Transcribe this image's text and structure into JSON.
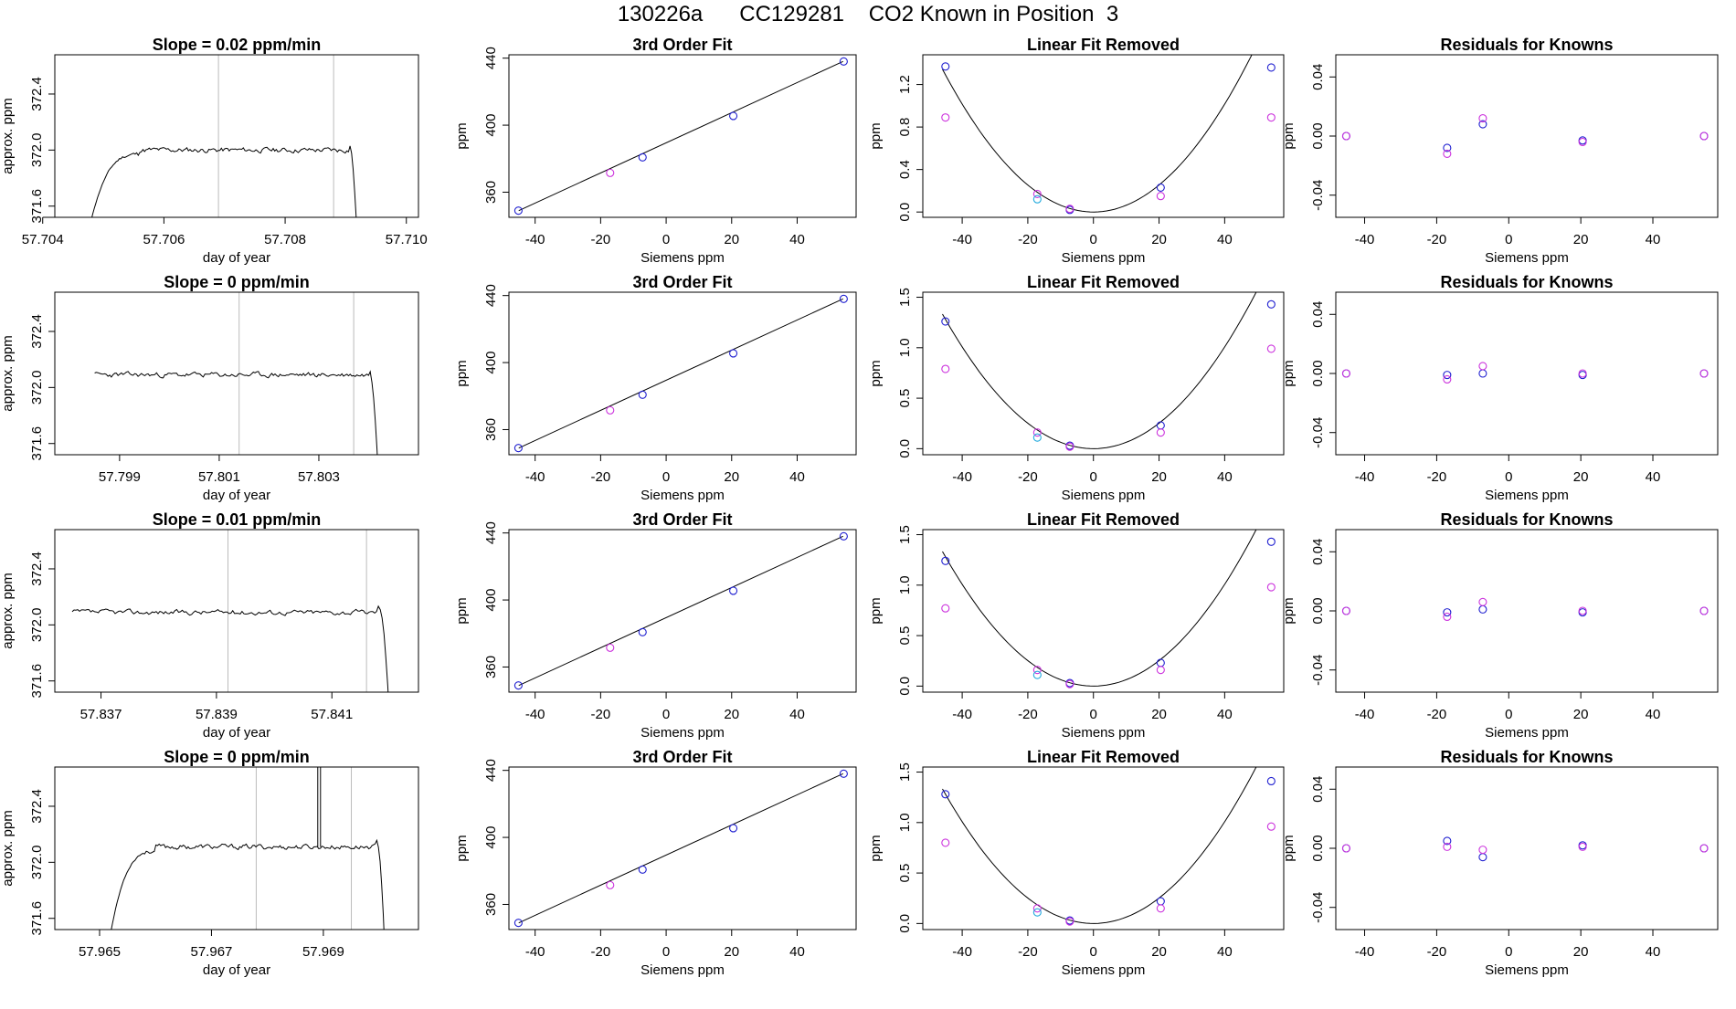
{
  "figure_title": "130226a      CC129281    CO2 Known in Position  3",
  "colors": {
    "axis": "#000000",
    "line": "#000000",
    "vline": "#bbbbbb",
    "blue": "#1f1fd0",
    "magenta": "#cc33dd",
    "cyan": "#22aadd",
    "red": "#ff6666"
  },
  "chart_data": [
    {
      "panel": "r1-trace",
      "type": "line",
      "title": "Slope =  0.02  ppm/min",
      "xlabel": "day of year",
      "ylabel": "approx. ppm",
      "xlim": [
        57.7042,
        57.7102
      ],
      "ylim": [
        371.52,
        372.68
      ],
      "xticks": [
        "57.704",
        "57.706",
        "57.708",
        "57.710"
      ],
      "yticks": [
        "371.6",
        "372.0",
        "372.4"
      ],
      "vlines": [
        57.7069,
        57.7088
      ],
      "trace": {
        "start": 57.7048,
        "end": 57.7092,
        "level": 372.0,
        "rise_from": 371.5,
        "rise_end": 57.7056,
        "fall_start": 57.70905,
        "seed": 11
      }
    },
    {
      "panel": "r1-fit",
      "type": "scatter",
      "title": "3rd Order Fit",
      "xlabel": "Siemens ppm",
      "ylabel": "ppm",
      "xlim": [
        -48,
        58
      ],
      "ylim": [
        345,
        442
      ],
      "xticks": [
        "-40",
        "-20",
        "0",
        "20",
        "40"
      ],
      "yticks": [
        "360",
        "400",
        "440"
      ],
      "line": {
        "x": [
          -45,
          54
        ],
        "y": [
          349.0,
          438.0
        ]
      },
      "series": [
        {
          "name": "blue",
          "x": [
            -45.1,
            -7.2,
            20.5,
            54.2
          ],
          "y": [
            349.0,
            380.8,
            405.5,
            438.0
          ]
        },
        {
          "name": "magenta",
          "x": [
            -17.1
          ],
          "y": [
            371.5
          ]
        }
      ]
    },
    {
      "panel": "r1-lin",
      "type": "scatter",
      "title": "Linear Fit Removed",
      "xlabel": "Siemens ppm",
      "ylabel": "ppm",
      "xlim": [
        -52,
        58
      ],
      "ylim": [
        -0.05,
        1.48
      ],
      "xticks": [
        "-40",
        "-20",
        "0",
        "20",
        "40"
      ],
      "yticks": [
        "0.0",
        "0.4",
        "0.8",
        "1.2"
      ],
      "curve": {
        "x0": 0.0,
        "a": 0.000635,
        "from": -46,
        "to": 54
      },
      "series": [
        {
          "name": "blue",
          "x": [
            -45.1,
            -7.2,
            20.5,
            54.2
          ],
          "y": [
            1.37,
            0.02,
            0.23,
            1.36
          ]
        },
        {
          "name": "magenta",
          "x": [
            -45.1,
            -17.1,
            -7.2,
            20.5,
            54.2
          ],
          "y": [
            0.89,
            0.17,
            0.03,
            0.15,
            0.89
          ]
        },
        {
          "name": "cyan",
          "x": [
            -17.1
          ],
          "y": [
            0.12
          ]
        }
      ]
    },
    {
      "panel": "r1-res",
      "type": "scatter",
      "title": "Residuals for Knowns",
      "xlabel": "Siemens ppm",
      "ylabel": "ppm",
      "xlim": [
        -48,
        58
      ],
      "ylim": [
        -0.055,
        0.055
      ],
      "xticks": [
        "-40",
        "-20",
        "0",
        "20",
        "40"
      ],
      "yticks": [
        "-0.04",
        "0.00",
        "0.04"
      ],
      "series": [
        {
          "name": "blue",
          "x": [
            -45.1,
            -17.1,
            -7.2,
            20.5,
            54.2
          ],
          "y": [
            0.0,
            -0.008,
            0.008,
            -0.003,
            0.0
          ]
        },
        {
          "name": "magenta",
          "x": [
            -45.1,
            -17.1,
            -7.2,
            20.5,
            54.2
          ],
          "y": [
            0.0,
            -0.012,
            0.012,
            -0.004,
            0.0
          ]
        }
      ]
    },
    {
      "panel": "r2-trace",
      "type": "line",
      "title": "Slope =  0  ppm/min",
      "xlabel": "day of year",
      "ylabel": "approx. ppm",
      "xlim": [
        57.7977,
        57.805
      ],
      "ylim": [
        371.52,
        372.68
      ],
      "xticks": [
        "57.799",
        "57.801",
        "57.803"
      ],
      "yticks": [
        "371.6",
        "372.0",
        "372.4"
      ],
      "vlines": [
        57.8014,
        57.8037
      ],
      "trace": {
        "start": 57.7985,
        "end": 57.8042,
        "level": 372.09,
        "rise_from": null,
        "rise_end": null,
        "fall_start": 57.804,
        "seed": 23
      }
    },
    {
      "panel": "r2-fit",
      "type": "scatter",
      "title": "3rd Order Fit",
      "xlabel": "Siemens ppm",
      "ylabel": "ppm",
      "xlim": [
        -48,
        58
      ],
      "ylim": [
        345,
        442
      ],
      "xticks": [
        "-40",
        "-20",
        "0",
        "20",
        "40"
      ],
      "yticks": [
        "360",
        "400",
        "440"
      ],
      "line": {
        "x": [
          -45,
          54
        ],
        "y": [
          349.0,
          438.0
        ]
      },
      "series": [
        {
          "name": "blue",
          "x": [
            -45.1,
            -7.2,
            20.5,
            54.2
          ],
          "y": [
            349.0,
            380.8,
            405.5,
            438.0
          ]
        },
        {
          "name": "magenta",
          "x": [
            -17.1
          ],
          "y": [
            371.5
          ]
        }
      ]
    },
    {
      "panel": "r2-lin",
      "type": "scatter",
      "title": "Linear Fit Removed",
      "xlabel": "Siemens ppm",
      "ylabel": "ppm",
      "xlim": [
        -52,
        58
      ],
      "ylim": [
        -0.06,
        1.55
      ],
      "xticks": [
        "-40",
        "-20",
        "0",
        "20",
        "40"
      ],
      "yticks": [
        "0.0",
        "0.5",
        "1.0",
        "1.5"
      ],
      "curve": {
        "x0": 0.0,
        "a": 0.00063,
        "from": -46,
        "to": 54
      },
      "series": [
        {
          "name": "blue",
          "x": [
            -45.1,
            -7.2,
            20.5,
            54.2
          ],
          "y": [
            1.26,
            0.03,
            0.23,
            1.43
          ]
        },
        {
          "name": "magenta",
          "x": [
            -45.1,
            -17.1,
            -7.2,
            20.5,
            54.2
          ],
          "y": [
            0.79,
            0.16,
            0.02,
            0.16,
            0.99
          ]
        },
        {
          "name": "cyan",
          "x": [
            -17.1
          ],
          "y": [
            0.11
          ]
        }
      ]
    },
    {
      "panel": "r2-res",
      "type": "scatter",
      "title": "Residuals for Knowns",
      "xlabel": "Siemens ppm",
      "ylabel": "ppm",
      "xlim": [
        -48,
        58
      ],
      "ylim": [
        -0.055,
        0.055
      ],
      "xticks": [
        "-40",
        "-20",
        "0",
        "20",
        "40"
      ],
      "yticks": [
        "-0.04",
        "0.00",
        "0.04"
      ],
      "series": [
        {
          "name": "blue",
          "x": [
            -45.1,
            -17.1,
            -7.2,
            20.5,
            54.2
          ],
          "y": [
            0.0,
            -0.001,
            0.0,
            -0.001,
            0.0
          ]
        },
        {
          "name": "magenta",
          "x": [
            -45.1,
            -17.1,
            -7.2,
            20.5,
            54.2
          ],
          "y": [
            0.0,
            -0.004,
            0.005,
            0.0,
            0.0
          ]
        }
      ]
    },
    {
      "panel": "r3-trace",
      "type": "line",
      "title": "Slope =  0.01  ppm/min",
      "xlabel": "day of year",
      "ylabel": "approx. ppm",
      "xlim": [
        57.8362,
        57.8425
      ],
      "ylim": [
        371.52,
        372.68
      ],
      "xticks": [
        "57.837",
        "57.839",
        "57.841"
      ],
      "yticks": [
        "371.6",
        "372.0",
        "372.4"
      ],
      "vlines": [
        57.8392,
        57.8416
      ],
      "trace": {
        "start": 57.8365,
        "end": 57.842,
        "level": 372.09,
        "rise_from": null,
        "rise_end": null,
        "fall_start": 57.8418,
        "seed": 37
      }
    },
    {
      "panel": "r3-fit",
      "type": "scatter",
      "title": "3rd Order Fit",
      "xlabel": "Siemens ppm",
      "ylabel": "ppm",
      "xlim": [
        -48,
        58
      ],
      "ylim": [
        345,
        442
      ],
      "xticks": [
        "-40",
        "-20",
        "0",
        "20",
        "40"
      ],
      "yticks": [
        "360",
        "400",
        "440"
      ],
      "line": {
        "x": [
          -45,
          54
        ],
        "y": [
          349.0,
          438.0
        ]
      },
      "series": [
        {
          "name": "blue",
          "x": [
            -45.1,
            -7.2,
            20.5,
            54.2
          ],
          "y": [
            349.0,
            380.8,
            405.5,
            438.0
          ]
        },
        {
          "name": "magenta",
          "x": [
            -17.1
          ],
          "y": [
            371.5
          ]
        }
      ]
    },
    {
      "panel": "r3-lin",
      "type": "scatter",
      "title": "Linear Fit Removed",
      "xlabel": "Siemens ppm",
      "ylabel": "ppm",
      "xlim": [
        -52,
        58
      ],
      "ylim": [
        -0.06,
        1.55
      ],
      "xticks": [
        "-40",
        "-20",
        "0",
        "20",
        "40"
      ],
      "yticks": [
        "0.0",
        "0.5",
        "1.0",
        "1.5"
      ],
      "curve": {
        "x0": 0.0,
        "a": 0.00063,
        "from": -46,
        "to": 54
      },
      "series": [
        {
          "name": "blue",
          "x": [
            -45.1,
            -7.2,
            20.5,
            54.2
          ],
          "y": [
            1.24,
            0.03,
            0.23,
            1.43
          ]
        },
        {
          "name": "magenta",
          "x": [
            -45.1,
            -17.1,
            -7.2,
            20.5,
            54.2
          ],
          "y": [
            0.77,
            0.16,
            0.02,
            0.16,
            0.98
          ]
        },
        {
          "name": "cyan",
          "x": [
            -17.1
          ],
          "y": [
            0.11
          ]
        }
      ]
    },
    {
      "panel": "r3-res",
      "type": "scatter",
      "title": "Residuals for Knowns",
      "xlabel": "Siemens ppm",
      "ylabel": "ppm",
      "xlim": [
        -48,
        58
      ],
      "ylim": [
        -0.055,
        0.055
      ],
      "xticks": [
        "-40",
        "-20",
        "0",
        "20",
        "40"
      ],
      "yticks": [
        "-0.04",
        "0.00",
        "0.04"
      ],
      "series": [
        {
          "name": "blue",
          "x": [
            -45.1,
            -17.1,
            -7.2,
            20.5,
            54.2
          ],
          "y": [
            0.0,
            -0.001,
            0.001,
            -0.001,
            0.0
          ]
        },
        {
          "name": "magenta",
          "x": [
            -45.1,
            -17.1,
            -7.2,
            20.5,
            54.2
          ],
          "y": [
            0.0,
            -0.004,
            0.006,
            0.0,
            0.0
          ]
        }
      ]
    },
    {
      "panel": "r4-trace",
      "type": "line",
      "title": "Slope =  0  ppm/min",
      "xlabel": "day of year",
      "ylabel": "approx. ppm",
      "xlim": [
        57.9642,
        57.9707
      ],
      "ylim": [
        371.52,
        372.68
      ],
      "xticks": [
        "57.965",
        "57.967",
        "57.969"
      ],
      "yticks": [
        "371.6",
        "372.0",
        "372.4"
      ],
      "vlines": [
        57.9678,
        57.9695
      ],
      "spike": 57.9689,
      "trace": {
        "start": 57.9652,
        "end": 57.9701,
        "level": 372.11,
        "rise_from": 371.5,
        "rise_end": 57.966,
        "fall_start": 57.96995,
        "seed": 53
      }
    },
    {
      "panel": "r4-fit",
      "type": "scatter",
      "title": "3rd Order Fit",
      "xlabel": "Siemens ppm",
      "ylabel": "ppm",
      "xlim": [
        -48,
        58
      ],
      "ylim": [
        345,
        442
      ],
      "xticks": [
        "-40",
        "-20",
        "0",
        "20",
        "40"
      ],
      "yticks": [
        "360",
        "400",
        "440"
      ],
      "line": {
        "x": [
          -45,
          54
        ],
        "y": [
          349.0,
          438.0
        ]
      },
      "series": [
        {
          "name": "blue",
          "x": [
            -45.1,
            -7.2,
            20.5,
            54.2
          ],
          "y": [
            349.0,
            380.8,
            405.5,
            438.0
          ]
        },
        {
          "name": "magenta",
          "x": [
            -17.1
          ],
          "y": [
            371.5
          ]
        }
      ]
    },
    {
      "panel": "r4-lin",
      "type": "scatter",
      "title": "Linear Fit Removed",
      "xlabel": "Siemens ppm",
      "ylabel": "ppm",
      "xlim": [
        -52,
        58
      ],
      "ylim": [
        -0.06,
        1.55
      ],
      "xticks": [
        "-40",
        "-20",
        "0",
        "20",
        "40"
      ],
      "yticks": [
        "0.0",
        "0.5",
        "1.0",
        "1.5"
      ],
      "curve": {
        "x0": 0.0,
        "a": 0.00063,
        "from": -46,
        "to": 54
      },
      "series": [
        {
          "name": "blue",
          "x": [
            -45.1,
            -7.2,
            20.5,
            54.2
          ],
          "y": [
            1.28,
            0.03,
            0.22,
            1.41
          ]
        },
        {
          "name": "magenta",
          "x": [
            -45.1,
            -17.1,
            -7.2,
            20.5,
            54.2
          ],
          "y": [
            0.8,
            0.15,
            0.02,
            0.15,
            0.96
          ]
        },
        {
          "name": "cyan",
          "x": [
            -17.1
          ],
          "y": [
            0.11
          ]
        }
      ]
    },
    {
      "panel": "r4-res",
      "type": "scatter",
      "title": "Residuals for Knowns",
      "xlabel": "Siemens ppm",
      "ylabel": "ppm",
      "xlim": [
        -48,
        58
      ],
      "ylim": [
        -0.055,
        0.055
      ],
      "xticks": [
        "-40",
        "-20",
        "0",
        "20",
        "40"
      ],
      "yticks": [
        "-0.04",
        "0.00",
        "0.04"
      ],
      "series": [
        {
          "name": "blue",
          "x": [
            -45.1,
            -17.1,
            -7.2,
            20.5,
            54.2
          ],
          "y": [
            0.0,
            0.005,
            -0.006,
            0.002,
            0.0
          ]
        },
        {
          "name": "magenta",
          "x": [
            -45.1,
            -17.1,
            -7.2,
            20.5,
            54.2
          ],
          "y": [
            0.0,
            0.001,
            -0.001,
            0.001,
            0.0
          ]
        }
      ]
    }
  ]
}
